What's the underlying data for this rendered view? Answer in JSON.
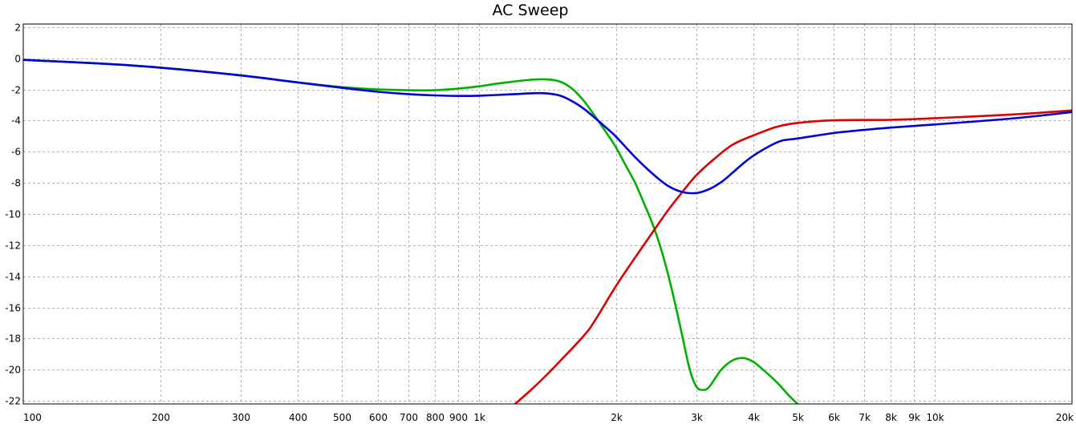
{
  "chart_data": {
    "type": "line",
    "title": "AC Sweep",
    "xlabel": "",
    "ylabel": "",
    "x_scale": "log",
    "xlim": [
      100,
      20000
    ],
    "ylim": [
      -22.2,
      2.2
    ],
    "grid": true,
    "x_ticks": [
      {
        "value": 100,
        "label": "100"
      },
      {
        "value": 200,
        "label": "200"
      },
      {
        "value": 300,
        "label": "300"
      },
      {
        "value": 400,
        "label": "400"
      },
      {
        "value": 500,
        "label": "500"
      },
      {
        "value": 600,
        "label": "600"
      },
      {
        "value": 700,
        "label": "700"
      },
      {
        "value": 800,
        "label": "800"
      },
      {
        "value": 900,
        "label": "900"
      },
      {
        "value": 1000,
        "label": "1k"
      },
      {
        "value": 2000,
        "label": "2k"
      },
      {
        "value": 3000,
        "label": "3k"
      },
      {
        "value": 4000,
        "label": "4k"
      },
      {
        "value": 5000,
        "label": "5k"
      },
      {
        "value": 6000,
        "label": "6k"
      },
      {
        "value": 7000,
        "label": "7k"
      },
      {
        "value": 8000,
        "label": "8k"
      },
      {
        "value": 9000,
        "label": "9k"
      },
      {
        "value": 10000,
        "label": "10k"
      },
      {
        "value": 20000,
        "label": "20k"
      }
    ],
    "y_ticks": [
      {
        "value": 2,
        "label": "2"
      },
      {
        "value": 0,
        "label": "0"
      },
      {
        "value": -2,
        "label": "-2"
      },
      {
        "value": -4,
        "label": "-4"
      },
      {
        "value": -6,
        "label": "-6"
      },
      {
        "value": -8,
        "label": "-8"
      },
      {
        "value": -10,
        "label": "-10"
      },
      {
        "value": -12,
        "label": "-12"
      },
      {
        "value": -14,
        "label": "-14"
      },
      {
        "value": -16,
        "label": "-16"
      },
      {
        "value": -18,
        "label": "-18"
      },
      {
        "value": -20,
        "label": "-20"
      },
      {
        "value": -22,
        "label": "-22"
      }
    ],
    "series": [
      {
        "color": "#00b000",
        "x": [
          100,
          150,
          200,
          300,
          400,
          500,
          600,
          700,
          800,
          900,
          1000,
          1100,
          1200,
          1300,
          1400,
          1500,
          1600,
          1700,
          1800,
          1900,
          2000,
          2100,
          2200,
          2300,
          2400,
          2500,
          2600,
          2700,
          2800,
          2900,
          3000,
          3100,
          3200,
          3400,
          3600,
          3800,
          4000,
          4200,
          4500,
          4800,
          5000
        ],
        "y": [
          -0.1,
          -0.35,
          -0.6,
          -1.1,
          -1.55,
          -1.85,
          -2.0,
          -2.05,
          -2.05,
          -1.95,
          -1.8,
          -1.62,
          -1.48,
          -1.38,
          -1.35,
          -1.48,
          -1.95,
          -2.75,
          -3.75,
          -4.75,
          -5.75,
          -6.9,
          -8.0,
          -9.3,
          -10.6,
          -12.1,
          -13.9,
          -15.9,
          -18.0,
          -20.0,
          -21.1,
          -21.3,
          -21.1,
          -20.0,
          -19.4,
          -19.25,
          -19.5,
          -20.0,
          -20.8,
          -21.7,
          -22.2
        ]
      },
      {
        "color": "#dd0000",
        "x": [
          1200,
          1300,
          1400,
          1500,
          1700,
          1800,
          2000,
          2200,
          2400,
          2600,
          2800,
          3000,
          3300,
          3600,
          4000,
          4500,
          5000,
          6000,
          8000,
          10000,
          15000,
          20000
        ],
        "y": [
          -22.2,
          -21.3,
          -20.4,
          -19.5,
          -17.8,
          -16.8,
          -14.6,
          -12.8,
          -11.2,
          -9.75,
          -8.55,
          -7.5,
          -6.4,
          -5.55,
          -4.95,
          -4.4,
          -4.15,
          -3.98,
          -3.95,
          -3.85,
          -3.6,
          -3.35
        ]
      },
      {
        "color": "#0000dd",
        "x": [
          100,
          150,
          200,
          300,
          400,
          500,
          600,
          700,
          800,
          900,
          1000,
          1200,
          1300,
          1400,
          1500,
          1600,
          1700,
          1800,
          1900,
          2000,
          2200,
          2400,
          2600,
          2800,
          3000,
          3200,
          3400,
          3600,
          3800,
          4000,
          4300,
          4600,
          5000,
          6000,
          7000,
          8000,
          10000,
          15000,
          20000
        ],
        "y": [
          -0.1,
          -0.35,
          -0.6,
          -1.1,
          -1.55,
          -1.9,
          -2.15,
          -2.3,
          -2.38,
          -2.42,
          -2.4,
          -2.3,
          -2.25,
          -2.25,
          -2.38,
          -2.75,
          -3.25,
          -3.85,
          -4.45,
          -5.05,
          -6.35,
          -7.4,
          -8.2,
          -8.6,
          -8.65,
          -8.4,
          -7.95,
          -7.35,
          -6.75,
          -6.25,
          -5.7,
          -5.3,
          -5.15,
          -4.8,
          -4.6,
          -4.45,
          -4.25,
          -3.85,
          -3.45
        ]
      }
    ]
  }
}
